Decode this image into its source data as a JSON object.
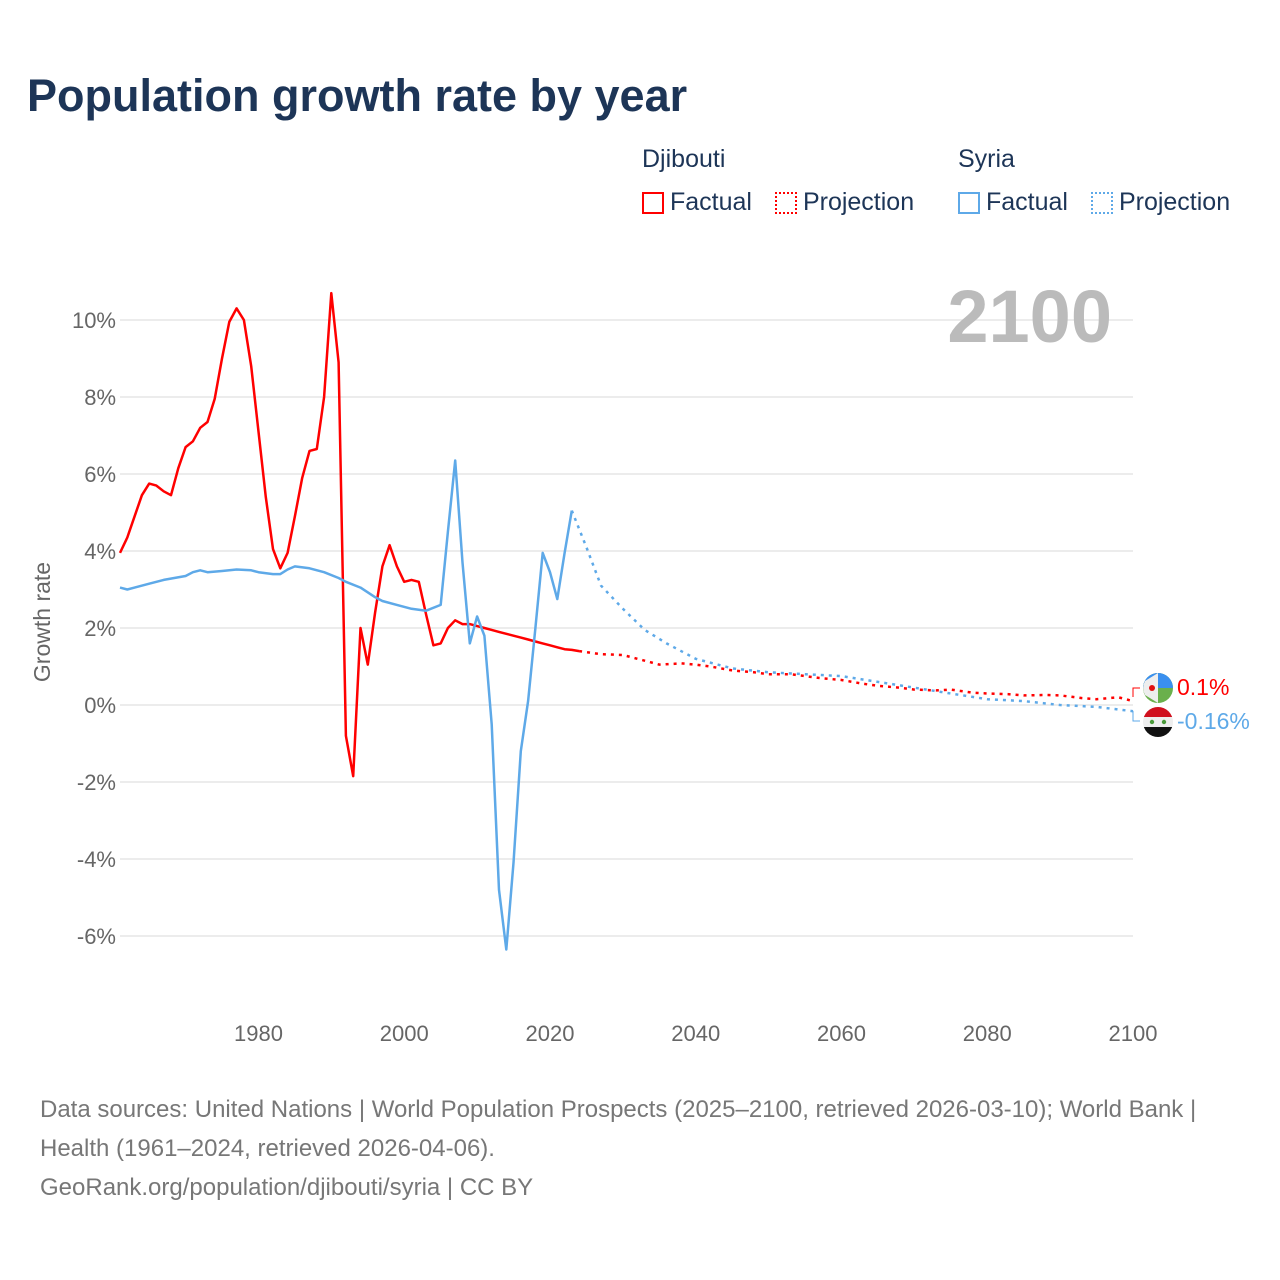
{
  "title": "Population growth rate by year",
  "legend": [
    {
      "country": "Djibouti",
      "color": "#ff0000",
      "factual": "Factual",
      "projection": "Projection"
    },
    {
      "country": "Syria",
      "color": "#5ea9e8",
      "factual": "Factual",
      "projection": "Projection"
    }
  ],
  "source": {
    "line1": "Data sources: United Nations | World Population Prospects (2025–2100, retrieved 2026-03-10); World Bank | Health (1961–2024, retrieved 2026-04-06).",
    "line2": "GeoRank.org/population/djibouti/syria | CC BY"
  },
  "chart_data": {
    "type": "line",
    "title": "Population growth rate by year",
    "ylabel": "Growth rate",
    "xlabel": "",
    "year_label": "2100",
    "xlim": [
      1961,
      2100
    ],
    "ylim": [
      -7,
      11
    ],
    "xticks": [
      1980,
      2000,
      2020,
      2040,
      2060,
      2080,
      2100
    ],
    "yticks": [
      -6,
      -4,
      -2,
      0,
      2,
      4,
      6,
      8,
      10
    ],
    "ytick_labels": [
      "-6%",
      "-4%",
      "-2%",
      "0%",
      "2%",
      "4%",
      "6%",
      "8%",
      "10%"
    ],
    "end_labels": [
      "0.1%",
      "-0.16%"
    ],
    "series": [
      {
        "name": "Djibouti",
        "color": "#ff0000",
        "factual": {
          "x": [
            1961,
            1962,
            1963,
            1964,
            1965,
            1966,
            1967,
            1968,
            1969,
            1970,
            1971,
            1972,
            1973,
            1974,
            1975,
            1976,
            1977,
            1978,
            1979,
            1980,
            1981,
            1982,
            1983,
            1984,
            1985,
            1986,
            1987,
            1988,
            1989,
            1990,
            1991,
            1992,
            1993,
            1994,
            1995,
            1996,
            1997,
            1998,
            1999,
            2000,
            2001,
            2002,
            2003,
            2004,
            2005,
            2006,
            2007,
            2008,
            2009,
            2010,
            2011,
            2012,
            2013,
            2014,
            2015,
            2016,
            2017,
            2018,
            2019,
            2020,
            2021,
            2022,
            2023,
            2024
          ],
          "y": [
            3.95,
            4.35,
            4.9,
            5.45,
            5.75,
            5.7,
            5.55,
            5.45,
            6.15,
            6.7,
            6.85,
            7.2,
            7.35,
            7.95,
            9.0,
            9.95,
            10.3,
            10.0,
            8.8,
            7.1,
            5.4,
            4.05,
            3.55,
            3.95,
            4.9,
            5.9,
            6.6,
            6.65,
            8.0,
            10.7,
            8.9,
            -0.8,
            -1.85,
            2.0,
            1.05,
            2.4,
            3.6,
            4.15,
            3.6,
            3.2,
            3.25,
            3.2,
            2.35,
            1.55,
            1.6,
            2.0,
            2.2,
            2.1,
            2.1,
            2.05,
            2.0,
            1.95,
            1.9,
            1.85,
            1.8,
            1.75,
            1.7,
            1.65,
            1.6,
            1.55,
            1.5,
            1.45,
            1.43,
            1.4
          ]
        },
        "projection": {
          "x": [
            2024,
            2027,
            2030,
            2033,
            2035,
            2038,
            2040,
            2042,
            2045,
            2048,
            2050,
            2053,
            2055,
            2057,
            2060,
            2063,
            2065,
            2068,
            2070,
            2073,
            2075,
            2078,
            2080,
            2083,
            2085,
            2088,
            2090,
            2093,
            2095,
            2098,
            2100
          ],
          "y": [
            1.4,
            1.32,
            1.3,
            1.15,
            1.05,
            1.08,
            1.05,
            1.0,
            0.9,
            0.85,
            0.8,
            0.8,
            0.75,
            0.7,
            0.65,
            0.55,
            0.5,
            0.45,
            0.4,
            0.38,
            0.4,
            0.32,
            0.3,
            0.28,
            0.25,
            0.26,
            0.25,
            0.18,
            0.15,
            0.2,
            0.1
          ]
        }
      },
      {
        "name": "Syria",
        "color": "#5ea9e8",
        "factual": {
          "x": [
            1961,
            1962,
            1963,
            1965,
            1967,
            1970,
            1971,
            1972,
            1973,
            1975,
            1977,
            1979,
            1980,
            1982,
            1983,
            1984,
            1985,
            1987,
            1989,
            1991,
            1992,
            1994,
            1996,
            1997,
            1999,
            2001,
            2003,
            2005,
            2006,
            2007,
            2008,
            2009,
            2010,
            2011,
            2012,
            2013,
            2014,
            2015,
            2016,
            2017,
            2018,
            2019,
            2020,
            2021,
            2022,
            2023
          ],
          "y": [
            3.05,
            3.0,
            3.05,
            3.15,
            3.25,
            3.35,
            3.45,
            3.5,
            3.45,
            3.48,
            3.52,
            3.5,
            3.45,
            3.4,
            3.4,
            3.52,
            3.6,
            3.55,
            3.45,
            3.3,
            3.2,
            3.05,
            2.8,
            2.7,
            2.6,
            2.5,
            2.45,
            2.6,
            4.5,
            6.35,
            3.7,
            1.6,
            2.3,
            1.8,
            -0.5,
            -4.8,
            -6.35,
            -4.1,
            -1.2,
            0.1,
            2.0,
            3.95,
            3.45,
            2.75,
            3.95,
            5.05
          ]
        },
        "projection": {
          "x": [
            2023,
            2025,
            2027,
            2030,
            2033,
            2036,
            2040,
            2045,
            2050,
            2055,
            2060,
            2065,
            2070,
            2075,
            2080,
            2085,
            2090,
            2095,
            2100
          ],
          "y": [
            5.05,
            4.1,
            3.1,
            2.5,
            1.95,
            1.6,
            1.2,
            0.95,
            0.85,
            0.8,
            0.75,
            0.6,
            0.45,
            0.3,
            0.15,
            0.1,
            0.0,
            -0.05,
            -0.16
          ]
        }
      }
    ]
  }
}
